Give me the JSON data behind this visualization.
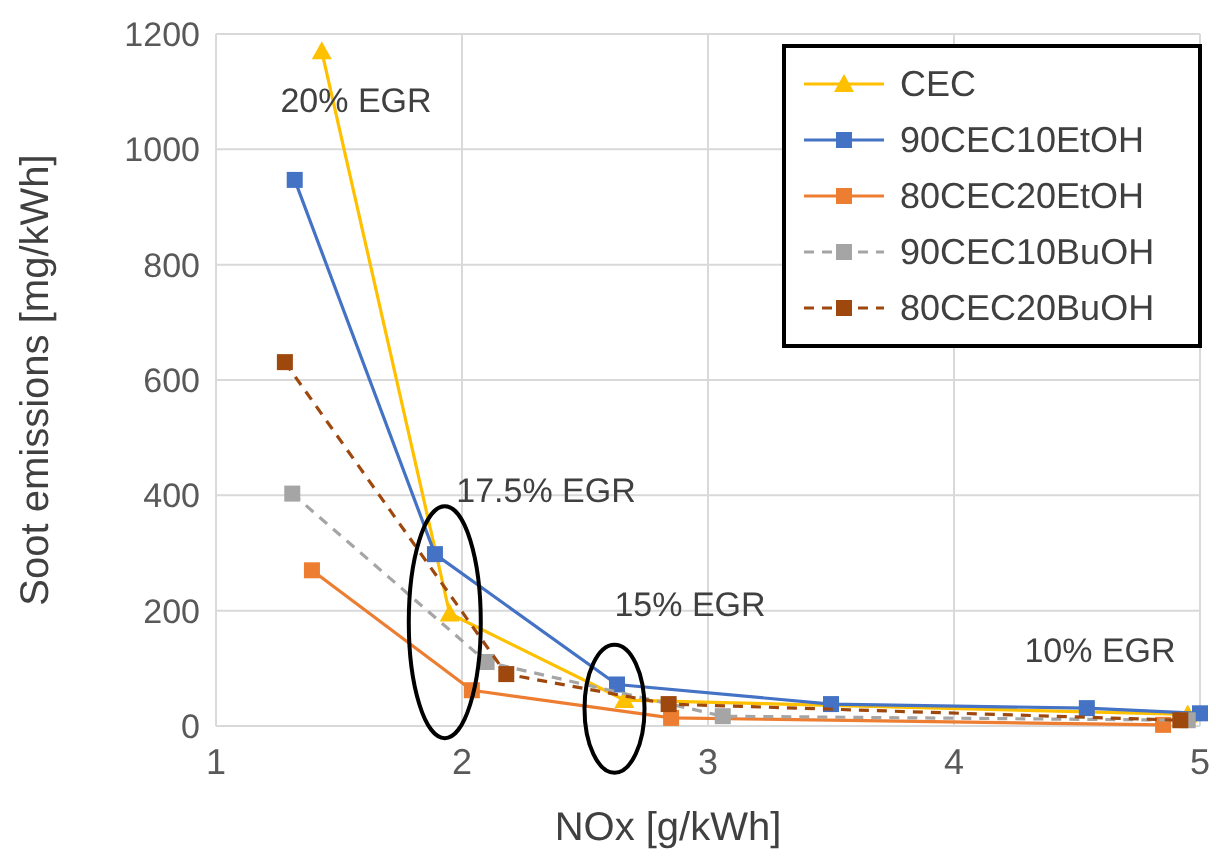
{
  "chart_data": {
    "type": "line",
    "xlabel": "NOx [g/kWh]",
    "ylabel": "Soot emissions [mg/kWh]",
    "xlim": [
      1,
      5
    ],
    "ylim": [
      0,
      1200
    ],
    "xticks": [
      1,
      2,
      3,
      4,
      5
    ],
    "yticks": [
      0,
      200,
      400,
      600,
      800,
      1000,
      1200
    ],
    "grid": true,
    "legend": "top right",
    "series": [
      {
        "name": "CEC",
        "color": "#ffc000",
        "marker": "triangle",
        "line_style": "solid",
        "x": [
          1.43,
          1.95,
          2.66,
          4.95
        ],
        "values": [
          1170,
          195,
          45,
          20
        ]
      },
      {
        "name": "90CEC10EtOH",
        "color": "#4472c4",
        "marker": "square",
        "line_style": "solid",
        "x": [
          1.32,
          1.89,
          2.63,
          3.5,
          4.54,
          5
        ],
        "values": [
          947,
          298,
          72,
          38,
          31,
          22
        ]
      },
      {
        "name": "80CEC20EtOH",
        "color": "#ed7d31",
        "marker": "square",
        "line_style": "solid",
        "x": [
          1.39,
          2.04,
          2.85,
          4.85
        ],
        "values": [
          270,
          62,
          14,
          2
        ]
      },
      {
        "name": "90CEC10BuOH",
        "color": "#a5a5a5",
        "marker": "square",
        "line_style": "dashed",
        "x": [
          1.31,
          2.1,
          3.06,
          4.95
        ],
        "values": [
          403,
          111,
          17,
          10
        ]
      },
      {
        "name": "80CEC20BuOH",
        "color": "#9e480e",
        "marker": "square",
        "line_style": "dashed",
        "x": [
          1.28,
          2.18,
          2.84,
          4.92
        ],
        "values": [
          631,
          90,
          38,
          10
        ]
      }
    ],
    "annotations": [
      "20% EGR",
      "17.5% EGR",
      "15% EGR",
      "10% EGR"
    ]
  }
}
